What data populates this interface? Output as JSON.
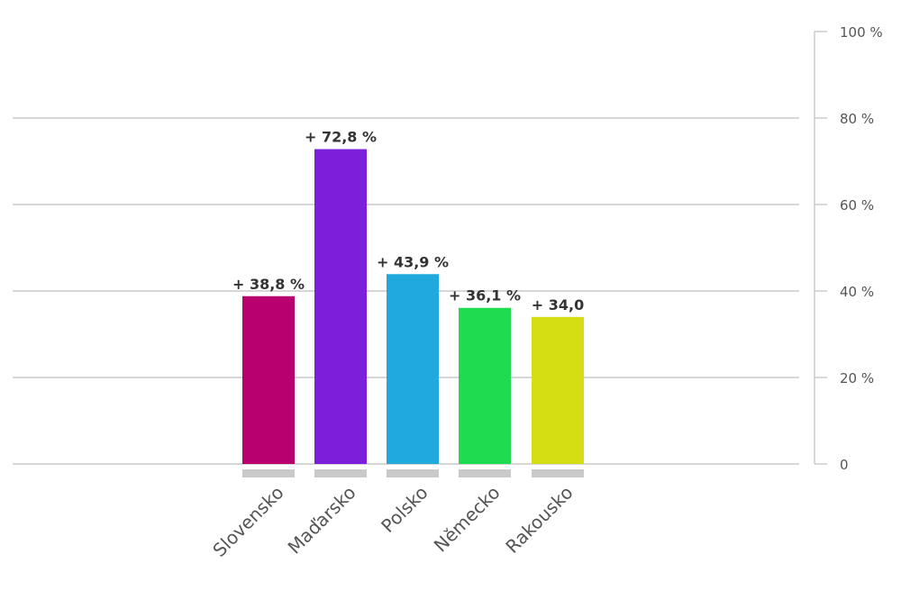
{
  "chart_data": {
    "type": "bar",
    "categories": [
      "Slovensko",
      "Maďarsko",
      "Polsko",
      "Německo",
      "Rakousko"
    ],
    "values": [
      38.8,
      72.8,
      43.9,
      36.1,
      34.0
    ],
    "value_labels": [
      "+ 38,8 %",
      "+ 72,8 %",
      "+ 43,9 %",
      "+ 36,1 %",
      "+ 34,0"
    ],
    "colors": [
      "#b8006e",
      "#7b1fdb",
      "#1fa9dc",
      "#1fdb50",
      "#d4de12"
    ],
    "ylim": [
      0,
      100
    ],
    "yticks": [
      0,
      20,
      40,
      60,
      80,
      100
    ],
    "ytick_labels": [
      "0",
      "20 %",
      "40 %",
      "60 %",
      "80 %",
      "100 %"
    ],
    "axis_position": "right",
    "grid": true,
    "title": "",
    "xlabel": "",
    "ylabel": ""
  }
}
